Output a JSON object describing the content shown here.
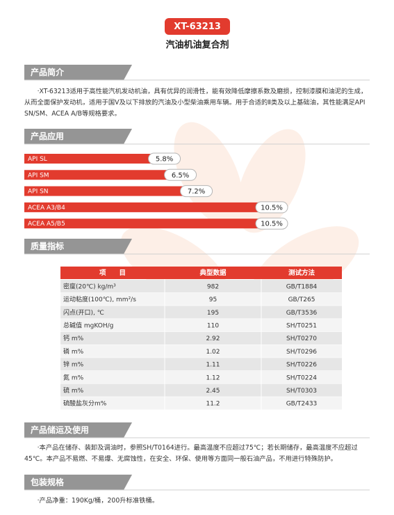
{
  "header": {
    "badge": "XT-63213",
    "title": "汽油机油复合剂"
  },
  "intro": {
    "heading": "产品简介",
    "text": "·XT-63213适用于高性能汽机发动机油，具有优异的润滑性，能有效降低摩擦系数及磨损，控制漆膜和油泥的生成，从而全面保护发动机，适用于国V及以下排放的汽油及小型柴油乘用车辆。用于合适的Ⅱ类及以上基础油，其性能满足API　SN/SM、ACEA A/B等规格要求。"
  },
  "application": {
    "heading": "产品应用"
  },
  "chart_data": {
    "type": "bar",
    "orientation": "horizontal",
    "color": "#e23b2e",
    "categories": [
      "API SL",
      "API SM",
      "API SN",
      "ACEA A3/B4",
      "ACEA A5/B5"
    ],
    "values": [
      5.8,
      6.5,
      7.2,
      10.5,
      10.5
    ],
    "value_labels": [
      "5.8%",
      "6.5%",
      "7.2%",
      "10.5%",
      "10.5%"
    ]
  },
  "quality": {
    "heading": "质量指标",
    "table": {
      "columns": [
        "项　　目",
        "典型数据",
        "测试方法"
      ],
      "rows": [
        [
          "密度(20℃) kg/m³",
          "982",
          "GB/T1884"
        ],
        [
          "运动粘度(100℃), mm²/s",
          "95",
          "GB/T265"
        ],
        [
          "闪点(开口), ℃",
          "195",
          "GB/T3536"
        ],
        [
          "总碱值 mgKOH/g",
          "110",
          "SH/T0251"
        ],
        [
          "钙 m%",
          "2.92",
          "SH/T0270"
        ],
        [
          "磷 m%",
          "1.02",
          "SH/T0296"
        ],
        [
          "锌 m%",
          "1.11",
          "SH/T0226"
        ],
        [
          "氮 m%",
          "1.12",
          "SH/T0224"
        ],
        [
          "硫 m%",
          "2.45",
          "SH/T0303"
        ],
        [
          "硫酸盐灰分m%",
          "11.2",
          "GB/T2433"
        ]
      ]
    }
  },
  "storage": {
    "heading": "产品储运及使用",
    "text": "·本产品在储存、装卸及调油时，参照SH/T0164进行。最高温度不应超过75℃；若长期储存，最高温度不应超过45℃。本产品不易燃、不易爆、无腐蚀性，在安全、环保、使用等方面同一般石油产品，不用进行特殊防护。"
  },
  "packaging": {
    "heading": "包装规格",
    "text": "·产品净重：190Kg/桶，200升标准铁桶。"
  }
}
